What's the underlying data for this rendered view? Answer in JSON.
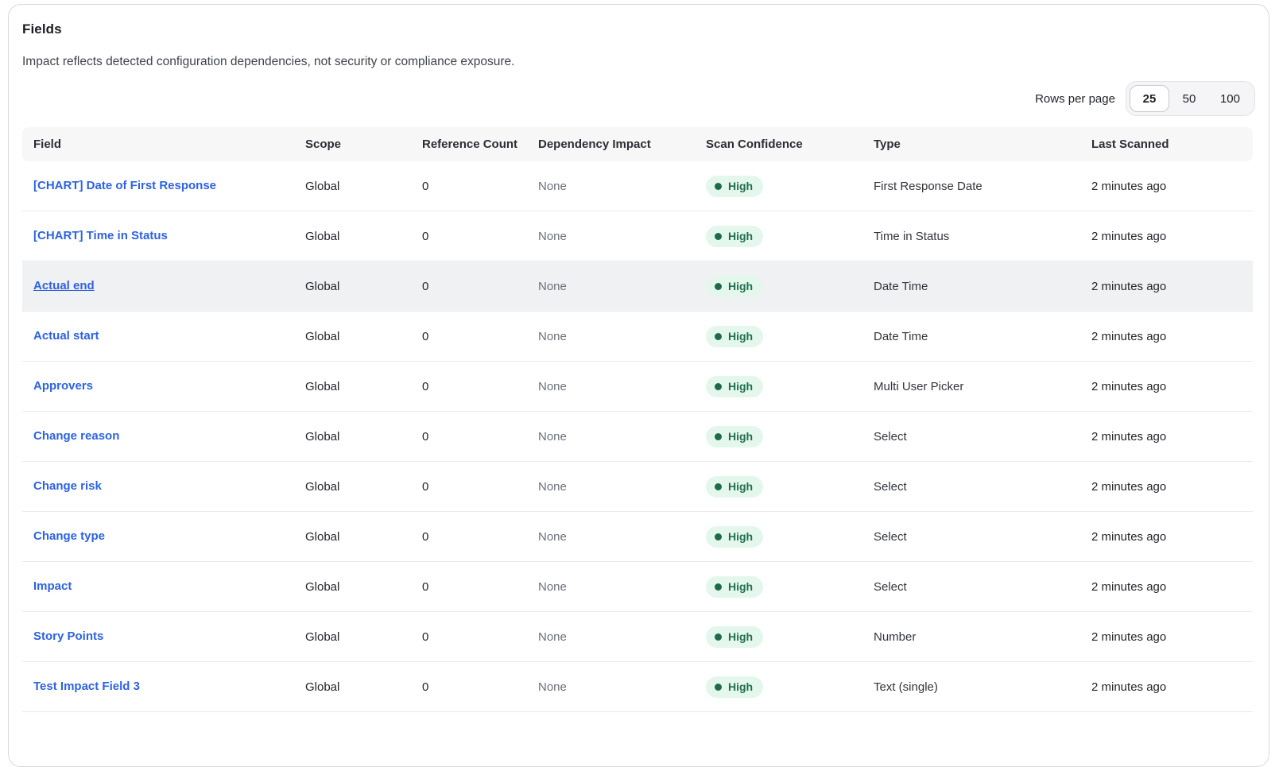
{
  "card": {
    "title": "Fields",
    "subtitle": "Impact reflects detected configuration dependencies, not security or compliance exposure."
  },
  "pagination": {
    "label": "Rows per page",
    "options": [
      {
        "label": "25",
        "selected": true
      },
      {
        "label": "50",
        "selected": false
      },
      {
        "label": "100",
        "selected": false
      }
    ]
  },
  "table": {
    "columns": [
      "Field",
      "Scope",
      "Reference Count",
      "Dependency Impact",
      "Scan Confidence",
      "Type",
      "Last Scanned"
    ],
    "rows": [
      {
        "field": "[CHART] Date of First Response",
        "scope": "Global",
        "reference_count": "0",
        "dependency_impact": "None",
        "scan_confidence": "High",
        "type": "First Response Date",
        "last_scanned": "2 minutes ago",
        "hovered": false
      },
      {
        "field": "[CHART] Time in Status",
        "scope": "Global",
        "reference_count": "0",
        "dependency_impact": "None",
        "scan_confidence": "High",
        "type": "Time in Status",
        "last_scanned": "2 minutes ago",
        "hovered": false
      },
      {
        "field": "Actual end",
        "scope": "Global",
        "reference_count": "0",
        "dependency_impact": "None",
        "scan_confidence": "High",
        "type": "Date Time",
        "last_scanned": "2 minutes ago",
        "hovered": true
      },
      {
        "field": "Actual start",
        "scope": "Global",
        "reference_count": "0",
        "dependency_impact": "None",
        "scan_confidence": "High",
        "type": "Date Time",
        "last_scanned": "2 minutes ago",
        "hovered": false
      },
      {
        "field": "Approvers",
        "scope": "Global",
        "reference_count": "0",
        "dependency_impact": "None",
        "scan_confidence": "High",
        "type": "Multi User Picker",
        "last_scanned": "2 minutes ago",
        "hovered": false
      },
      {
        "field": "Change reason",
        "scope": "Global",
        "reference_count": "0",
        "dependency_impact": "None",
        "scan_confidence": "High",
        "type": "Select",
        "last_scanned": "2 minutes ago",
        "hovered": false
      },
      {
        "field": "Change risk",
        "scope": "Global",
        "reference_count": "0",
        "dependency_impact": "None",
        "scan_confidence": "High",
        "type": "Select",
        "last_scanned": "2 minutes ago",
        "hovered": false
      },
      {
        "field": "Change type",
        "scope": "Global",
        "reference_count": "0",
        "dependency_impact": "None",
        "scan_confidence": "High",
        "type": "Select",
        "last_scanned": "2 minutes ago",
        "hovered": false
      },
      {
        "field": "Impact",
        "scope": "Global",
        "reference_count": "0",
        "dependency_impact": "None",
        "scan_confidence": "High",
        "type": "Select",
        "last_scanned": "2 minutes ago",
        "hovered": false
      },
      {
        "field": "Story Points",
        "scope": "Global",
        "reference_count": "0",
        "dependency_impact": "None",
        "scan_confidence": "High",
        "type": "Number",
        "last_scanned": "2 minutes ago",
        "hovered": false
      },
      {
        "field": "Test Impact Field 3",
        "scope": "Global",
        "reference_count": "0",
        "dependency_impact": "None",
        "scan_confidence": "High",
        "type": "Text (single)",
        "last_scanned": "2 minutes ago",
        "hovered": false
      }
    ]
  },
  "colors": {
    "link_blue": "#2e62e2",
    "badge_background": "#e4f7ed",
    "badge_text": "#216e4e",
    "header_background": "#f7f7f8",
    "hovered_row_background": "#f0f1f3"
  }
}
